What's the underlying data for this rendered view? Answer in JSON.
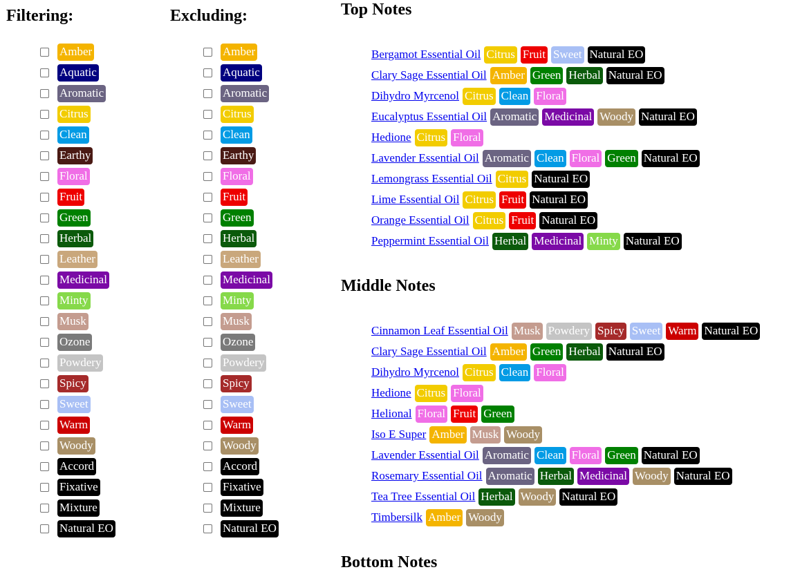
{
  "colors": {
    "Amber": "#f4b400",
    "Aquatic": "#000080",
    "Aromatic": "#6b6482",
    "Citrus": "#f2cc00",
    "Clean": "#039be5",
    "Earthy": "#4a1a14",
    "Floral": "#f06ee6",
    "Fruit": "#ee0000",
    "Green": "#008000",
    "Herbal": "#0b5a0b",
    "Leather": "#c9a77c",
    "Medicinal": "#7b0aa6",
    "Minty": "#86d94a",
    "Musk": "#c49c8f",
    "Ozone": "#7a7a7a",
    "Powdery": "#c4c4c4",
    "Spicy": "#a52a2a",
    "Sweet": "#a8bff5",
    "Warm": "#cc0000",
    "Woody": "#a88f66",
    "Accord": "#000000",
    "Fixative": "#000000",
    "Mixture": "#000000",
    "Natural EO": "#000000"
  },
  "filtering": {
    "heading": "Filtering:",
    "tags": [
      "Amber",
      "Aquatic",
      "Aromatic",
      "Citrus",
      "Clean",
      "Earthy",
      "Floral",
      "Fruit",
      "Green",
      "Herbal",
      "Leather",
      "Medicinal",
      "Minty",
      "Musk",
      "Ozone",
      "Powdery",
      "Spicy",
      "Sweet",
      "Warm",
      "Woody",
      "Accord",
      "Fixative",
      "Mixture",
      "Natural EO"
    ]
  },
  "excluding": {
    "heading": "Excluding:",
    "tags": [
      "Amber",
      "Aquatic",
      "Aromatic",
      "Citrus",
      "Clean",
      "Earthy",
      "Floral",
      "Fruit",
      "Green",
      "Herbal",
      "Leather",
      "Medicinal",
      "Minty",
      "Musk",
      "Ozone",
      "Powdery",
      "Spicy",
      "Sweet",
      "Warm",
      "Woody",
      "Accord",
      "Fixative",
      "Mixture",
      "Natural EO"
    ]
  },
  "top_notes": {
    "heading": "Top Notes",
    "entries": [
      {
        "name": "Bergamot Essential Oil",
        "tags": [
          "Citrus",
          "Fruit",
          "Sweet",
          "Natural EO"
        ]
      },
      {
        "name": "Clary Sage Essential Oil",
        "tags": [
          "Amber",
          "Green",
          "Herbal",
          "Natural EO"
        ]
      },
      {
        "name": "Dihydro Myrcenol",
        "tags": [
          "Citrus",
          "Clean",
          "Floral"
        ]
      },
      {
        "name": "Eucalyptus Essential Oil",
        "tags": [
          "Aromatic",
          "Medicinal",
          "Woody",
          "Natural EO"
        ]
      },
      {
        "name": "Hedione",
        "tags": [
          "Citrus",
          "Floral"
        ]
      },
      {
        "name": "Lavender Essential Oil",
        "tags": [
          "Aromatic",
          "Clean",
          "Floral",
          "Green",
          "Natural EO"
        ]
      },
      {
        "name": "Lemongrass Essential Oil",
        "tags": [
          "Citrus",
          "Natural EO"
        ]
      },
      {
        "name": "Lime Essential Oil",
        "tags": [
          "Citrus",
          "Fruit",
          "Natural EO"
        ]
      },
      {
        "name": "Orange Essential Oil",
        "tags": [
          "Citrus",
          "Fruit",
          "Natural EO"
        ]
      },
      {
        "name": "Peppermint Essential Oil",
        "tags": [
          "Herbal",
          "Medicinal",
          "Minty",
          "Natural EO"
        ]
      }
    ]
  },
  "middle_notes": {
    "heading": "Middle Notes",
    "entries": [
      {
        "name": "Cinnamon Leaf Essential Oil",
        "tags": [
          "Musk",
          "Powdery",
          "Spicy",
          "Sweet",
          "Warm",
          "Natural EO"
        ]
      },
      {
        "name": "Clary Sage Essential Oil",
        "tags": [
          "Amber",
          "Green",
          "Herbal",
          "Natural EO"
        ]
      },
      {
        "name": "Dihydro Myrcenol",
        "tags": [
          "Citrus",
          "Clean",
          "Floral"
        ]
      },
      {
        "name": "Hedione",
        "tags": [
          "Citrus",
          "Floral"
        ]
      },
      {
        "name": "Helional",
        "tags": [
          "Floral",
          "Fruit",
          "Green"
        ]
      },
      {
        "name": "Iso E Super",
        "tags": [
          "Amber",
          "Musk",
          "Woody"
        ]
      },
      {
        "name": "Lavender Essential Oil",
        "tags": [
          "Aromatic",
          "Clean",
          "Floral",
          "Green",
          "Natural EO"
        ]
      },
      {
        "name": "Rosemary Essential Oil",
        "tags": [
          "Aromatic",
          "Herbal",
          "Medicinal",
          "Woody",
          "Natural EO"
        ]
      },
      {
        "name": "Tea Tree Essential Oil",
        "tags": [
          "Herbal",
          "Woody",
          "Natural EO"
        ]
      },
      {
        "name": "Timbersilk",
        "tags": [
          "Amber",
          "Woody"
        ]
      }
    ]
  },
  "bottom_notes": {
    "heading": "Bottom Notes"
  }
}
